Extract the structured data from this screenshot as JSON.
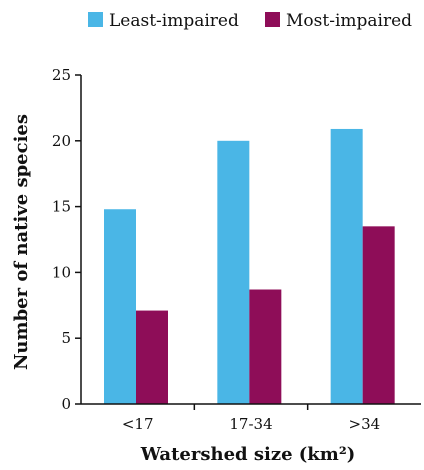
{
  "chart_data": {
    "type": "bar",
    "categories": [
      "<17",
      "17-34",
      ">34"
    ],
    "series": [
      {
        "name": "Least-impaired",
        "values": [
          14.8,
          20.0,
          20.9
        ],
        "color": "#4ab6e6"
      },
      {
        "name": "Most-impaired",
        "values": [
          7.1,
          8.7,
          13.5
        ],
        "color": "#8e0d58"
      }
    ],
    "xlabel": "Watershed size (km²)",
    "ylabel": "Number of native species",
    "ylim": [
      0,
      25
    ],
    "yticks": [
      0,
      5,
      10,
      15,
      20,
      25
    ],
    "grid": false,
    "legend_position": "top"
  }
}
